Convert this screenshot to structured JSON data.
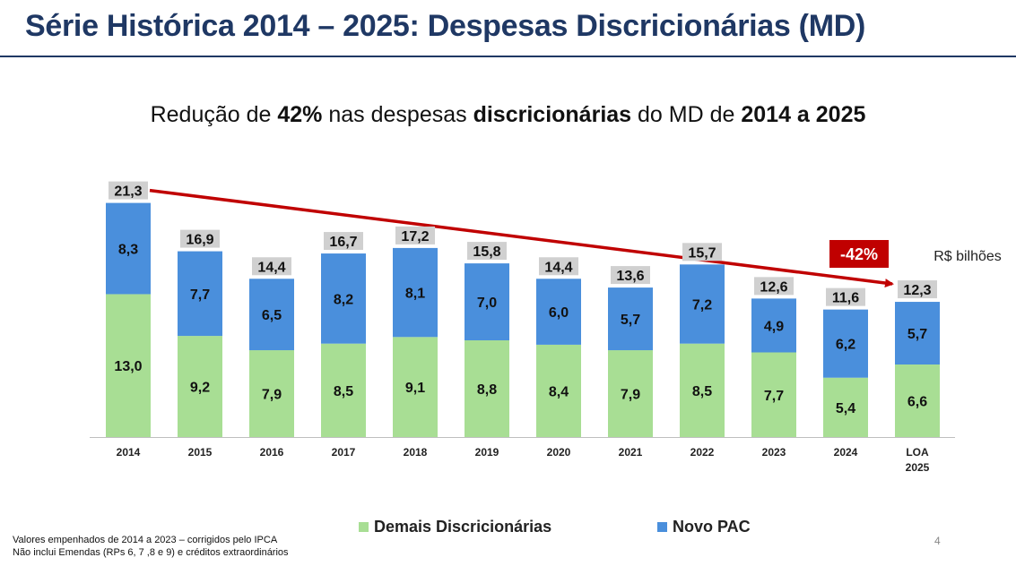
{
  "page": {
    "title": "Série Histórica 2014 – 2025: Despesas Discricionárias (MD)",
    "subtitle": {
      "part1": "Redução de ",
      "part2": "42%",
      "part3": " nas despesas ",
      "part4": "discricionárias",
      "part5": " do MD de ",
      "part6": "2014 a 2025"
    },
    "footnotes": [
      "Valores empenhados de 2014 a 2023 – corrigidos pelo IPCA",
      "Não inclui Emendas (RPs 6, 7 ,8 e 9) e créditos extraordinários"
    ],
    "page_number": "4"
  },
  "chart_data": {
    "type": "bar",
    "stacked": true,
    "unit_label": "R$ bilhões",
    "categories": [
      "2014",
      "2015",
      "2016",
      "2017",
      "2018",
      "2019",
      "2020",
      "2021",
      "2022",
      "2023",
      "2024",
      "LOA 2025"
    ],
    "series": [
      {
        "name": "Demais Discricionárias",
        "color": "#a8de94",
        "values": [
          13.0,
          9.2,
          7.9,
          8.5,
          9.1,
          8.8,
          8.4,
          7.9,
          8.5,
          7.7,
          5.4,
          6.6
        ]
      },
      {
        "name": "Novo PAC",
        "color": "#4a8fdc",
        "values": [
          8.3,
          7.7,
          6.5,
          8.2,
          8.1,
          7.0,
          6.0,
          5.7,
          7.2,
          4.9,
          6.2,
          5.7
        ]
      }
    ],
    "totals": [
      21.3,
      16.9,
      14.4,
      16.7,
      17.2,
      15.8,
      14.4,
      13.6,
      15.7,
      12.6,
      11.6,
      12.3
    ],
    "trend": {
      "from": "2014",
      "to": "LOA 2025",
      "label": "-42%",
      "color": "#c00000"
    },
    "ylim": [
      0,
      22
    ],
    "decimal_separator": ","
  }
}
